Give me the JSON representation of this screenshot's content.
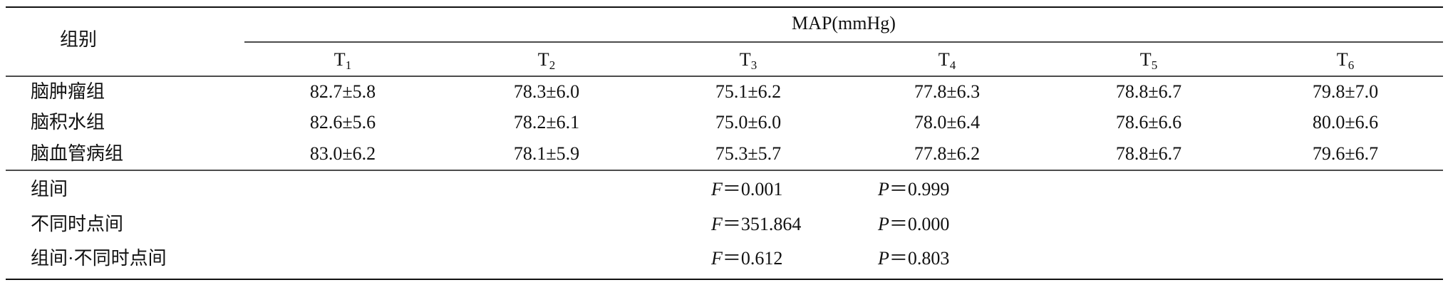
{
  "header": {
    "group_label": "组别",
    "measure": "MAP(mmHg)",
    "timepoints": [
      {
        "base": "T",
        "sub": "1"
      },
      {
        "base": "T",
        "sub": "2"
      },
      {
        "base": "T",
        "sub": "3"
      },
      {
        "base": "T",
        "sub": "4"
      },
      {
        "base": "T",
        "sub": "5"
      },
      {
        "base": "T",
        "sub": "6"
      }
    ]
  },
  "table": {
    "rows": [
      [
        "脑肿瘤组",
        "82.7±5.8",
        "78.3±6.0",
        "75.1±6.2",
        "77.8±6.3",
        "78.8±6.7",
        "79.8±7.0"
      ],
      [
        "脑积水组",
        "82.6±5.6",
        "78.2±6.1",
        "75.0±6.0",
        "78.0±6.4",
        "78.6±6.6",
        "80.0±6.6"
      ],
      [
        "脑血管病组",
        "83.0±6.2",
        "78.1±5.9",
        "75.3±5.7",
        "77.8±6.2",
        "78.8±6.7",
        "79.6±6.7"
      ]
    ]
  },
  "stats": [
    {
      "label": "组间",
      "f_symbol": "F",
      "f_value": "＝0.001",
      "p_symbol": "P",
      "p_value": "＝0.999"
    },
    {
      "label": "不同时点间",
      "f_symbol": "F",
      "f_value": "＝351.864",
      "p_symbol": "P",
      "p_value": "＝0.000"
    },
    {
      "label": "组间·不同时点间",
      "f_symbol": "F",
      "f_value": "＝0.612",
      "p_symbol": "P",
      "p_value": "＝0.803"
    }
  ]
}
